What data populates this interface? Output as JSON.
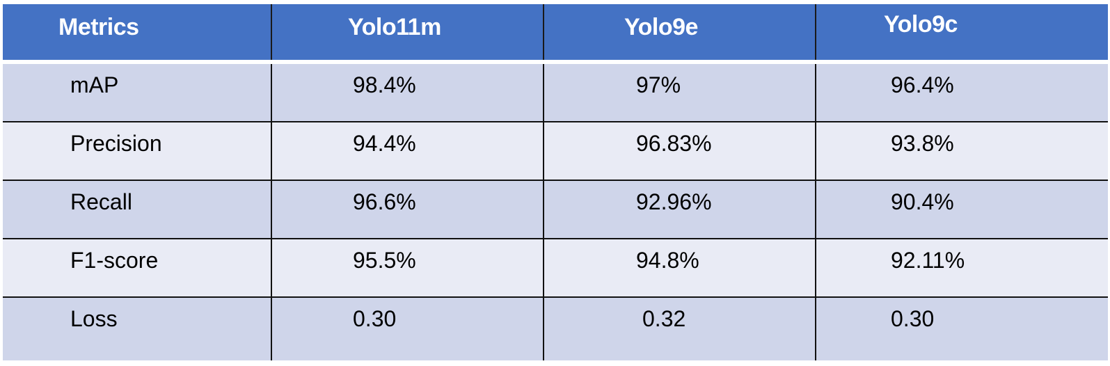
{
  "table": {
    "headers": [
      "Metrics",
      "Yolo11m",
      "Yolo9e",
      "Yolo9c"
    ],
    "rows": [
      [
        "mAP",
        "98.4%",
        "97%",
        "96.4%"
      ],
      [
        "Precision",
        "94.4%",
        "96.83%",
        "93.8%"
      ],
      [
        "Recall",
        "96.6%",
        "92.96%",
        "90.4%"
      ],
      [
        "F1-score",
        "95.5%",
        "94.8%",
        "92.11%"
      ],
      [
        "Loss",
        "0.30",
        "0.32",
        "0.30"
      ]
    ]
  },
  "colors": {
    "header_bg": "#4472c4",
    "row_odd_bg": "#cfd5ea",
    "row_even_bg": "#e9ebf5",
    "border": "#111111"
  }
}
